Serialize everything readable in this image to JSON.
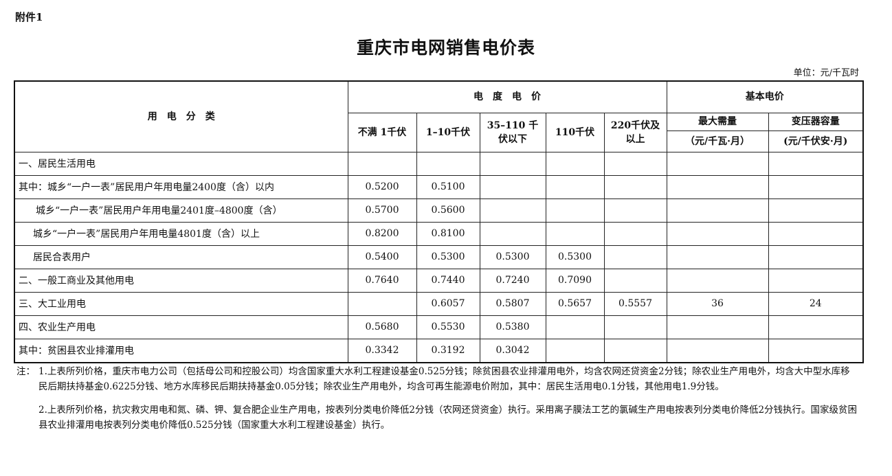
{
  "attachment": "附件1",
  "title": "重庆市电网销售电价表",
  "unit": "单位：元/千瓦时",
  "header": {
    "category": "用　电　分　类",
    "energy_price": "电　度　电　价",
    "basic_price": "基本电价",
    "voltage_cols": [
      "不满 1千伏",
      "1–10千伏",
      "35–110 千伏以下",
      "110千伏",
      "220千伏及以上"
    ],
    "max_demand": "最大需量",
    "max_demand_unit": "（元/千瓦·月）",
    "transformer": "变压器容量",
    "transformer_unit": "(元/千伏安·月)"
  },
  "rows": [
    {
      "category": "一、居民生活用电",
      "values": [
        "",
        "",
        "",
        "",
        "",
        "",
        ""
      ]
    },
    {
      "category": "其中：城乡“一户一表”居民用户年用电量2400度（含）以内",
      "values": [
        "0.5200",
        "0.5100",
        "",
        "",
        "",
        "",
        ""
      ]
    },
    {
      "category": "城乡“一户一表”居民用户年用电量2401度–4800度（含）",
      "values": [
        "0.5700",
        "0.5600",
        "",
        "",
        "",
        "",
        ""
      ]
    },
    {
      "category": "城乡“一户一表”居民用户年用电量4801度（含）以上",
      "values": [
        "0.8200",
        "0.8100",
        "",
        "",
        "",
        "",
        ""
      ]
    },
    {
      "category": "居民合表用户",
      "values": [
        "0.5400",
        "0.5300",
        "0.5300",
        "0.5300",
        "",
        "",
        ""
      ]
    },
    {
      "category": "二、一般工商业及其他用电",
      "values": [
        "0.7640",
        "0.7440",
        "0.7240",
        "0.7090",
        "",
        "",
        ""
      ]
    },
    {
      "category": "三、大工业用电",
      "values": [
        "",
        "0.6057",
        "0.5807",
        "0.5657",
        "0.5557",
        "36",
        "24"
      ]
    },
    {
      "category": "四、农业生产用电",
      "values": [
        "0.5680",
        "0.5530",
        "0.5380",
        "",
        "",
        "",
        ""
      ]
    },
    {
      "category": "其中：贫困县农业排灌用电",
      "values": [
        "0.3342",
        "0.3192",
        "0.3042",
        "",
        "",
        "",
        ""
      ]
    }
  ],
  "notes": {
    "label": "注：",
    "items": [
      "1.上表所列价格，重庆市电力公司（包括母公司和控股公司）均含国家重大水利工程建设基金0.525分钱；除贫困县农业排灌用电外，均含农网还贷资金2分钱；除农业生产用电外，均含大中型水库移民后期扶持基金0.6225分钱、地方水库移民后期扶持基金0.05分钱；除农业生产用电外，均含可再生能源电价附加，其中：居民生活用电0.1分钱，其他用电1.9分钱。",
      "2.上表所列价格，抗灾救灾用电和氮、磷、钾、复合肥企业生产用电，按表列分类电价降低2分钱（农网还贷资金）执行。采用离子膜法工艺的氯碱生产用电按表列分类电价降低2分钱执行。国家级贫困县农业排灌用电按表列分类电价降低0.525分钱（国家重大水利工程建设基金）执行。"
    ]
  }
}
